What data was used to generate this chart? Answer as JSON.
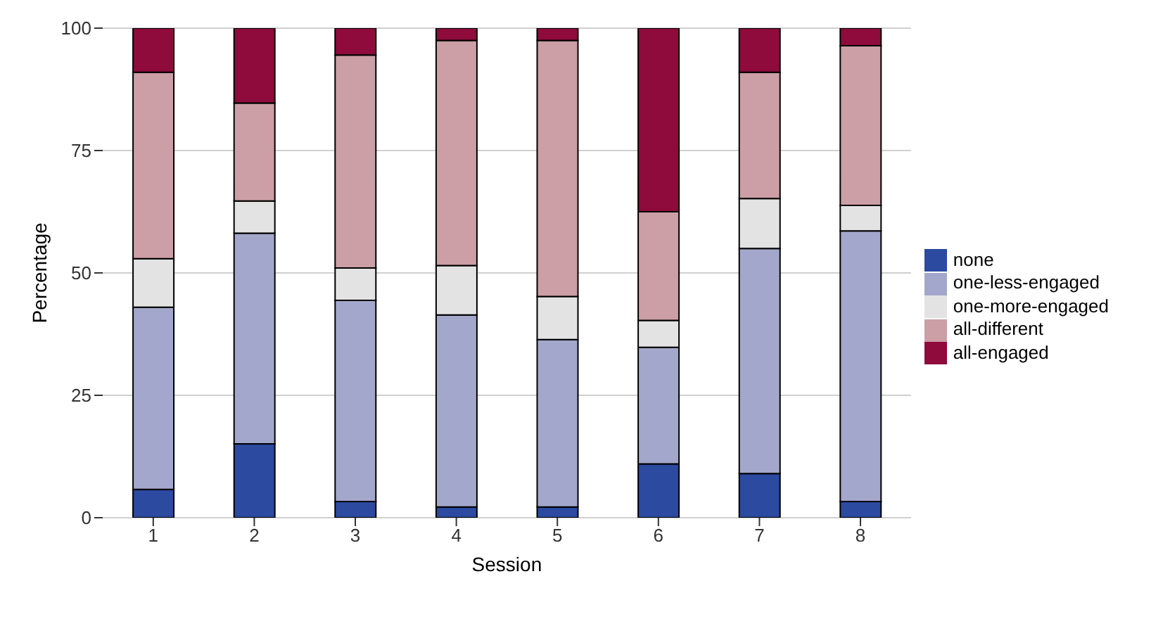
{
  "chart_data": {
    "type": "bar",
    "stacked": true,
    "xlabel": "Session",
    "ylabel": "Percentage",
    "categories": [
      "1",
      "2",
      "3",
      "4",
      "5",
      "6",
      "7",
      "8"
    ],
    "series": [
      {
        "name": "none",
        "color": "#2b4aa0",
        "values": [
          5.8,
          15.1,
          3.3,
          2.2,
          2.2,
          11.0,
          9.0,
          3.3
        ]
      },
      {
        "name": "one-less-engaged",
        "color": "#a3a7cb",
        "values": [
          37.2,
          43.0,
          41.1,
          39.2,
          34.2,
          23.8,
          46.0,
          55.3
        ]
      },
      {
        "name": "one-more-engaged",
        "color": "#e3e3e3",
        "values": [
          9.9,
          6.6,
          6.6,
          10.1,
          8.8,
          5.5,
          10.2,
          5.2
        ]
      },
      {
        "name": "all-different",
        "color": "#cc9ea5",
        "values": [
          38.1,
          20.0,
          43.5,
          46.0,
          52.3,
          22.2,
          25.8,
          32.6
        ]
      },
      {
        "name": "all-engaged",
        "color": "#8e0b3b",
        "values": [
          9.0,
          15.3,
          5.5,
          2.5,
          2.5,
          37.5,
          9.0,
          3.6
        ]
      }
    ],
    "ylim": [
      0,
      100
    ],
    "yticks": [
      0,
      25,
      50,
      75,
      100
    ],
    "grid": "y",
    "legend": "right"
  }
}
